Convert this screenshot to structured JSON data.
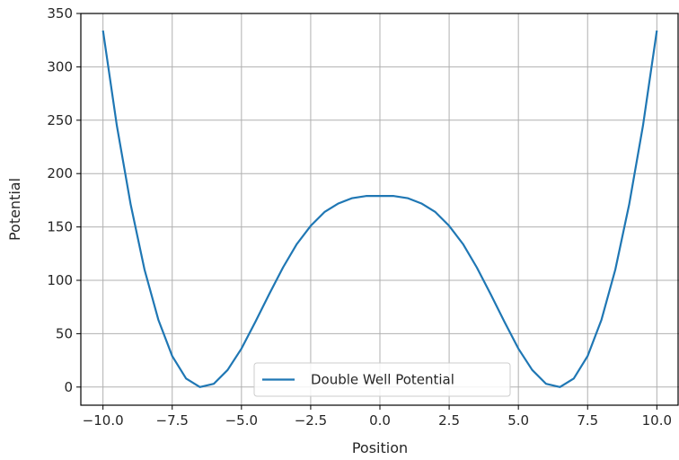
{
  "chart_data": {
    "type": "line",
    "title": "",
    "xlabel": "Position",
    "ylabel": "Potential",
    "xlim": [
      -10.8,
      10.8
    ],
    "ylim": [
      -17,
      350
    ],
    "grid": true,
    "legend_placement": "bottom-center",
    "x_ticks": [
      -10.0,
      -7.5,
      -5.0,
      -2.5,
      0.0,
      2.5,
      5.0,
      7.5,
      10.0
    ],
    "x_tick_labels": [
      "−10.0",
      "−7.5",
      "−5.0",
      "−2.5",
      "0.0",
      "2.5",
      "5.0",
      "7.5",
      "10.0"
    ],
    "y_ticks": [
      0,
      50,
      100,
      150,
      200,
      250,
      300,
      350
    ],
    "y_tick_labels": [
      "0",
      "50",
      "100",
      "150",
      "200",
      "250",
      "300",
      "350"
    ],
    "series": [
      {
        "name": "Double Well Potential",
        "color": "#1f77b4",
        "x": [
          -10.0,
          -9.5,
          -9.0,
          -8.5,
          -8.0,
          -7.5,
          -7.0,
          -6.5,
          -6.0,
          -5.5,
          -5.0,
          -4.5,
          -4.0,
          -3.5,
          -3.0,
          -2.5,
          -2.0,
          -1.5,
          -1.0,
          -0.5,
          0.0,
          0.5,
          1.0,
          1.5,
          2.0,
          2.5,
          3.0,
          3.5,
          4.0,
          4.5,
          5.0,
          5.5,
          6.0,
          6.5,
          7.0,
          7.5,
          8.0,
          8.5,
          9.0,
          9.5,
          10.0
        ],
        "y": [
          334,
          245,
          171,
          110,
          63,
          29,
          8,
          0,
          3,
          16,
          36,
          61,
          87,
          112,
          134,
          151,
          164,
          172,
          177,
          179,
          179,
          179,
          177,
          172,
          164,
          151,
          134,
          112,
          87,
          61,
          36,
          16,
          3,
          0,
          8,
          29,
          63,
          110,
          171,
          245,
          334
        ]
      }
    ]
  }
}
